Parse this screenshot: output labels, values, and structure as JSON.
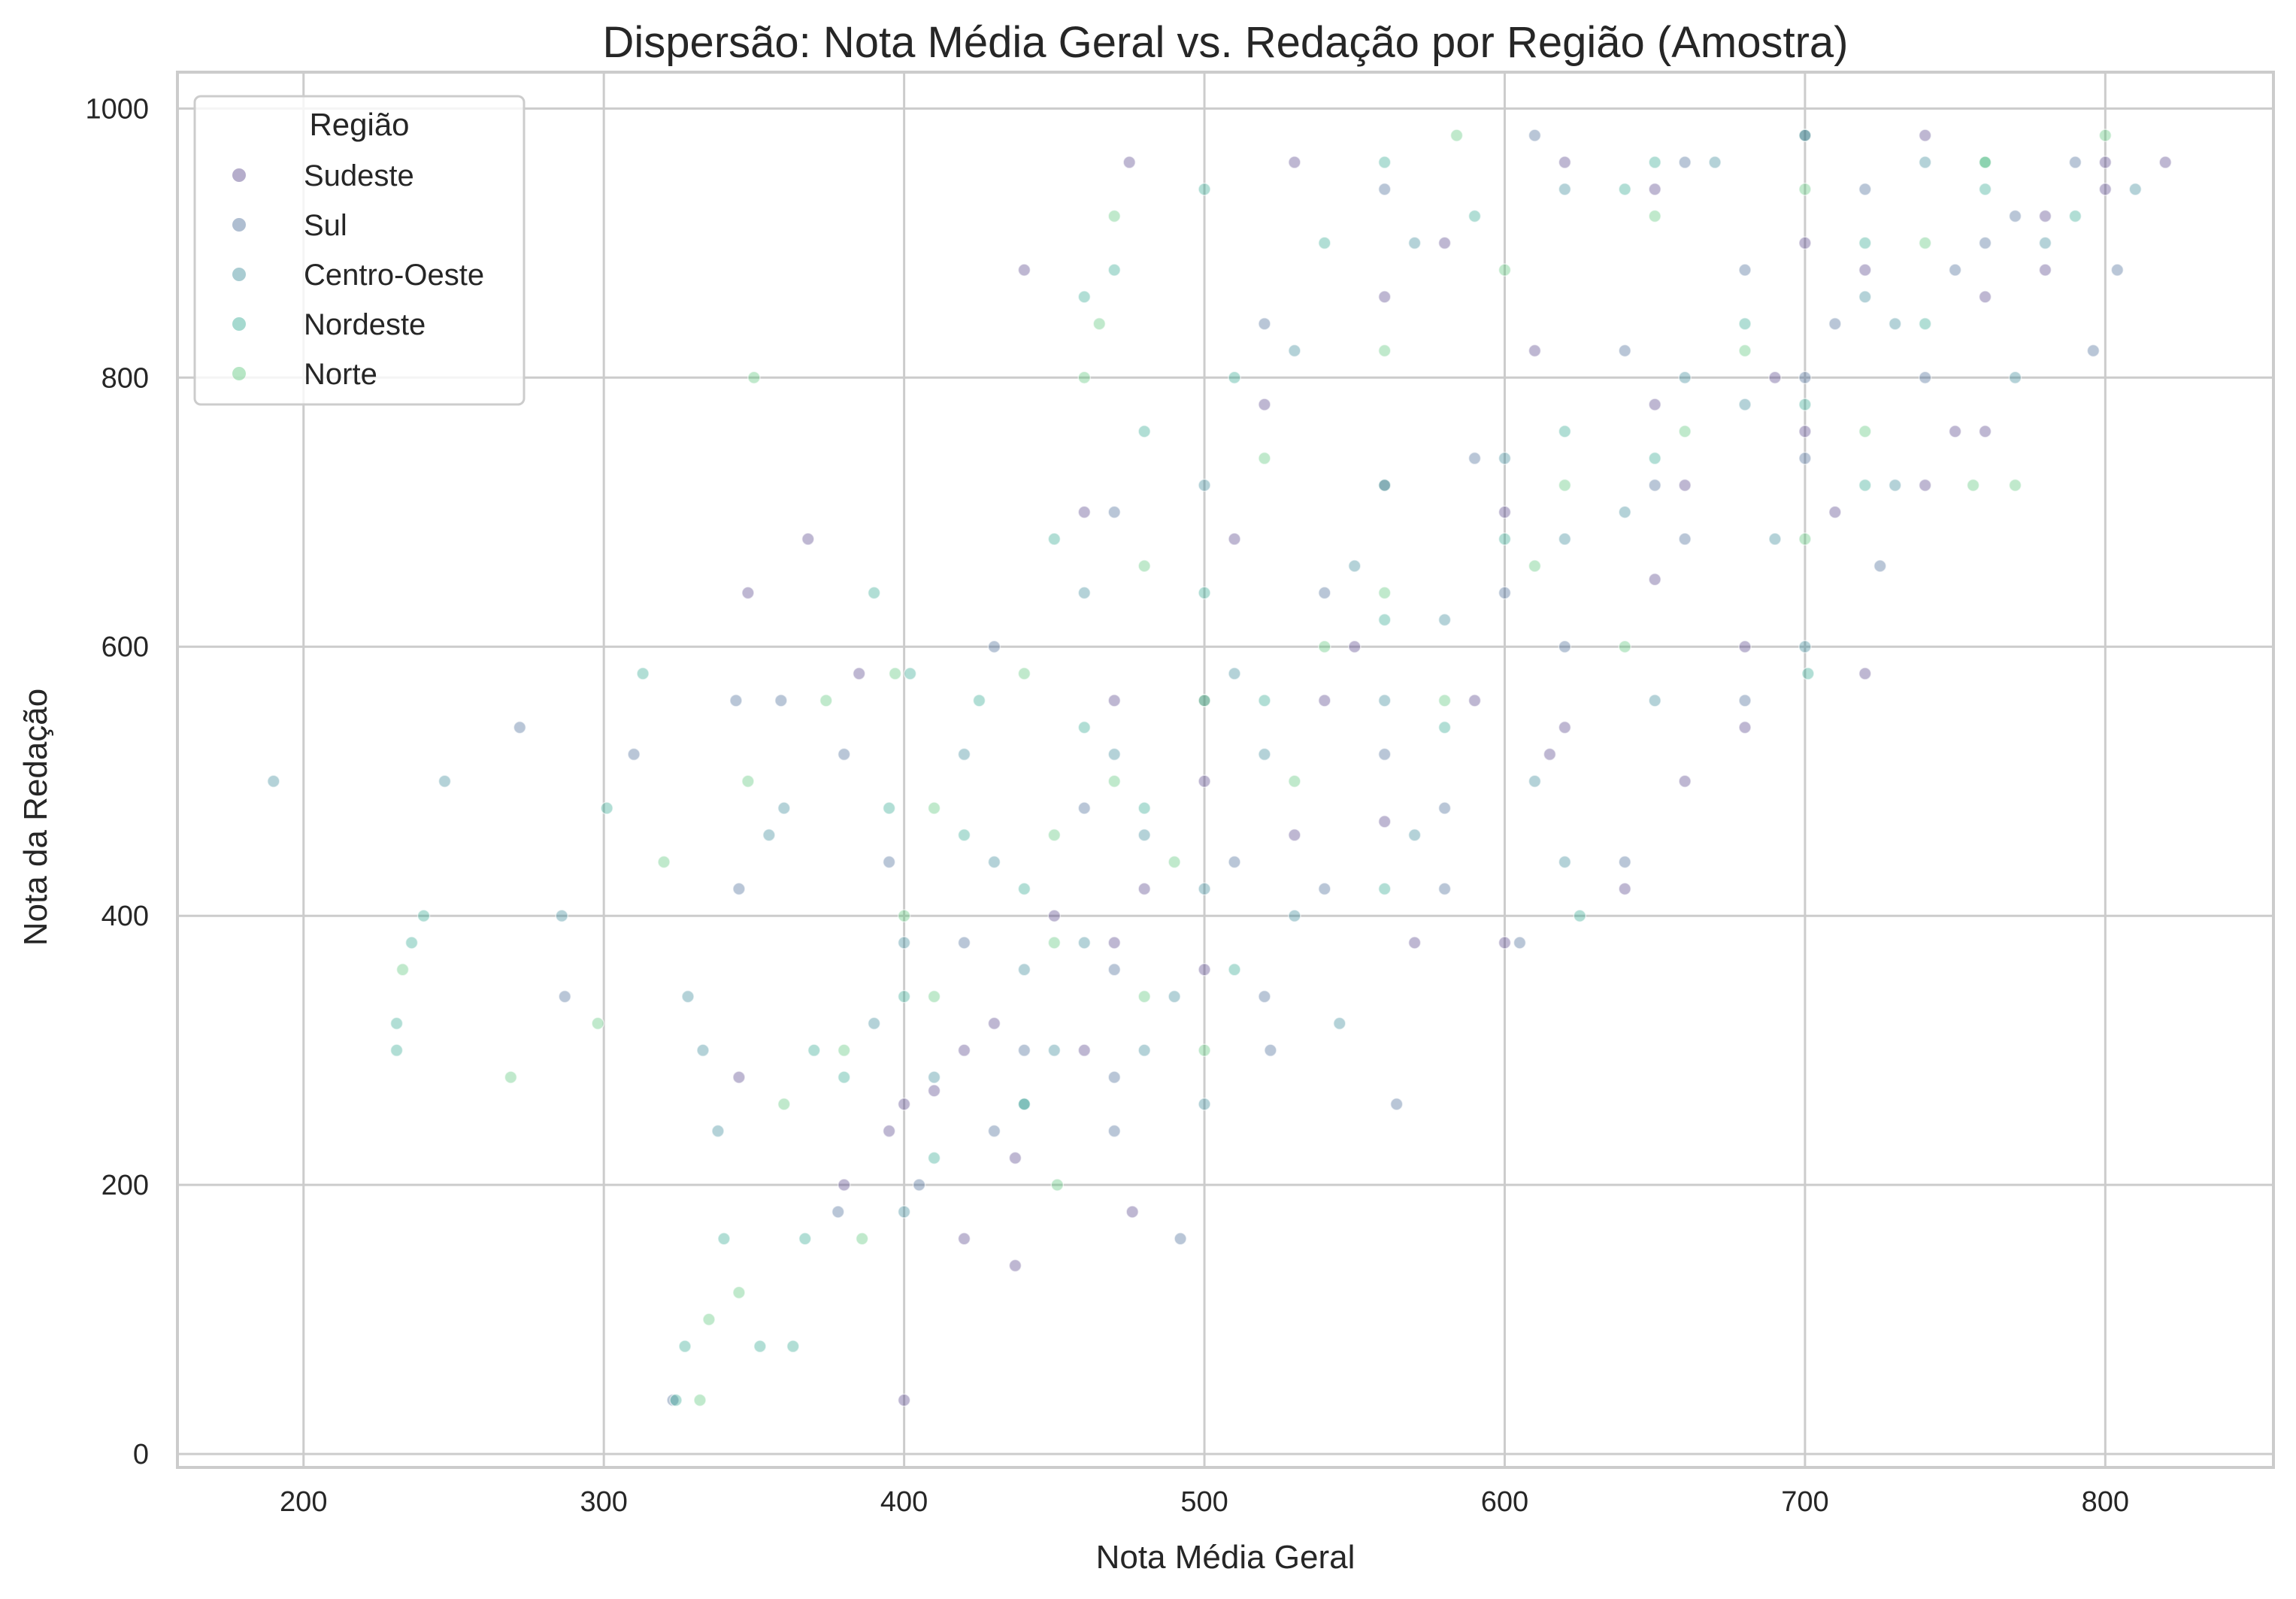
{
  "chart_data": {
    "type": "scatter",
    "title": "Dispersão: Nota Média Geral vs. Redação por Região (Amostra)",
    "xlabel": "Nota Média Geral",
    "ylabel": "Nota da Redação",
    "xlim": [
      158,
      856
    ],
    "ylim": [
      -10,
      1027
    ],
    "x_ticks": [
      200,
      300,
      400,
      500,
      600,
      700,
      800
    ],
    "y_ticks": [
      0,
      200,
      400,
      600,
      800,
      1000
    ],
    "grid": true,
    "legend": {
      "title": "Região",
      "placement": "top-left"
    },
    "marker_opacity": 0.35,
    "series": [
      {
        "name": "Sudeste",
        "color": "#46327e",
        "points": [
          [
            348,
            640
          ],
          [
            368,
            680
          ],
          [
            385,
            580
          ],
          [
            400,
            40
          ],
          [
            437,
            140
          ],
          [
            476,
            180
          ],
          [
            420,
            160
          ],
          [
            437,
            220
          ],
          [
            510,
            680
          ],
          [
            560,
            720
          ],
          [
            620,
            960
          ],
          [
            700,
            980
          ],
          [
            740,
            980
          ],
          [
            800,
            960
          ],
          [
            820,
            960
          ],
          [
            760,
            760
          ],
          [
            740,
            720
          ],
          [
            750,
            760
          ],
          [
            720,
            580
          ],
          [
            680,
            540
          ],
          [
            615,
            520
          ],
          [
            660,
            500
          ],
          [
            640,
            420
          ],
          [
            600,
            380
          ],
          [
            570,
            380
          ],
          [
            470,
            380
          ],
          [
            470,
            560
          ],
          [
            440,
            880
          ],
          [
            475,
            960
          ],
          [
            530,
            960
          ],
          [
            580,
            900
          ],
          [
            650,
            940
          ],
          [
            700,
            900
          ],
          [
            780,
            880
          ],
          [
            600,
            700
          ],
          [
            550,
            600
          ],
          [
            500,
            500
          ],
          [
            450,
            400
          ],
          [
            420,
            300
          ],
          [
            395,
            240
          ],
          [
            380,
            200
          ],
          [
            460,
            700
          ],
          [
            520,
            780
          ],
          [
            560,
            860
          ],
          [
            610,
            820
          ],
          [
            690,
            800
          ],
          [
            710,
            700
          ],
          [
            650,
            650
          ],
          [
            590,
            560
          ],
          [
            530,
            460
          ],
          [
            480,
            420
          ],
          [
            430,
            320
          ],
          [
            400,
            260
          ],
          [
            345,
            280
          ],
          [
            650,
            780
          ],
          [
            720,
            880
          ],
          [
            780,
            920
          ],
          [
            800,
            940
          ],
          [
            540,
            560
          ],
          [
            660,
            720
          ],
          [
            700,
            760
          ],
          [
            760,
            860
          ],
          [
            680,
            600
          ],
          [
            620,
            540
          ],
          [
            560,
            470
          ],
          [
            500,
            360
          ],
          [
            460,
            300
          ],
          [
            410,
            270
          ]
        ]
      },
      {
        "name": "Sul",
        "color": "#365c8d",
        "points": [
          [
            272,
            540
          ],
          [
            287,
            340
          ],
          [
            310,
            520
          ],
          [
            344,
            560
          ],
          [
            345,
            420
          ],
          [
            323,
            40
          ],
          [
            359,
            560
          ],
          [
            378,
            180
          ],
          [
            380,
            520
          ],
          [
            470,
            240
          ],
          [
            492,
            160
          ],
          [
            522,
            300
          ],
          [
            564,
            260
          ],
          [
            605,
            380
          ],
          [
            660,
            680
          ],
          [
            700,
            740
          ],
          [
            740,
            800
          ],
          [
            770,
            920
          ],
          [
            804,
            880
          ],
          [
            796,
            820
          ],
          [
            725,
            660
          ],
          [
            680,
            560
          ],
          [
            640,
            440
          ],
          [
            580,
            420
          ],
          [
            520,
            340
          ],
          [
            470,
            280
          ],
          [
            430,
            240
          ],
          [
            405,
            200
          ],
          [
            395,
            440
          ],
          [
            430,
            600
          ],
          [
            470,
            700
          ],
          [
            520,
            840
          ],
          [
            560,
            940
          ],
          [
            610,
            980
          ],
          [
            660,
            960
          ],
          [
            720,
            940
          ],
          [
            790,
            960
          ],
          [
            680,
            880
          ],
          [
            640,
            820
          ],
          [
            590,
            740
          ],
          [
            540,
            640
          ],
          [
            500,
            560
          ],
          [
            460,
            480
          ],
          [
            420,
            380
          ],
          [
            600,
            640
          ],
          [
            650,
            720
          ],
          [
            700,
            800
          ],
          [
            750,
            880
          ],
          [
            620,
            600
          ],
          [
            560,
            520
          ],
          [
            510,
            440
          ],
          [
            470,
            360
          ],
          [
            440,
            300
          ],
          [
            710,
            840
          ],
          [
            760,
            900
          ],
          [
            580,
            480
          ],
          [
            540,
            420
          ]
        ]
      },
      {
        "name": "Centro-Oeste",
        "color": "#277f8e",
        "points": [
          [
            190,
            500
          ],
          [
            247,
            500
          ],
          [
            286,
            400
          ],
          [
            328,
            340
          ],
          [
            333,
            300
          ],
          [
            338,
            240
          ],
          [
            355,
            460
          ],
          [
            360,
            480
          ],
          [
            400,
            180
          ],
          [
            440,
            260
          ],
          [
            480,
            300
          ],
          [
            500,
            260
          ],
          [
            545,
            320
          ],
          [
            620,
            440
          ],
          [
            700,
            600
          ],
          [
            730,
            720
          ],
          [
            770,
            800
          ],
          [
            810,
            940
          ],
          [
            690,
            680
          ],
          [
            650,
            560
          ],
          [
            610,
            500
          ],
          [
            570,
            460
          ],
          [
            530,
            400
          ],
          [
            490,
            340
          ],
          [
            450,
            300
          ],
          [
            410,
            280
          ],
          [
            390,
            320
          ],
          [
            420,
            520
          ],
          [
            460,
            640
          ],
          [
            500,
            720
          ],
          [
            530,
            820
          ],
          [
            570,
            900
          ],
          [
            620,
            940
          ],
          [
            670,
            960
          ],
          [
            740,
            960
          ],
          [
            780,
            900
          ],
          [
            720,
            860
          ],
          [
            660,
            800
          ],
          [
            600,
            740
          ],
          [
            550,
            660
          ],
          [
            510,
            580
          ],
          [
            470,
            520
          ],
          [
            430,
            440
          ],
          [
            400,
            380
          ],
          [
            640,
            700
          ],
          [
            580,
            620
          ],
          [
            520,
            520
          ],
          [
            480,
            460
          ],
          [
            440,
            360
          ],
          [
            680,
            780
          ],
          [
            730,
            840
          ],
          [
            620,
            680
          ],
          [
            560,
            560
          ],
          [
            500,
            420
          ],
          [
            460,
            380
          ]
        ]
      },
      {
        "name": "Nordeste",
        "color": "#1fa187",
        "points": [
          [
            231,
            320
          ],
          [
            231,
            300
          ],
          [
            236,
            380
          ],
          [
            240,
            400
          ],
          [
            301,
            480
          ],
          [
            313,
            580
          ],
          [
            327,
            80
          ],
          [
            324,
            40
          ],
          [
            340,
            160
          ],
          [
            352,
            80
          ],
          [
            363,
            80
          ],
          [
            367,
            160
          ],
          [
            390,
            640
          ],
          [
            402,
            580
          ],
          [
            460,
            860
          ],
          [
            470,
            880
          ],
          [
            500,
            940
          ],
          [
            560,
            960
          ],
          [
            640,
            940
          ],
          [
            720,
            720
          ],
          [
            701,
            580
          ],
          [
            625,
            400
          ],
          [
            560,
            420
          ],
          [
            510,
            360
          ],
          [
            440,
            260
          ],
          [
            410,
            220
          ],
          [
            380,
            280
          ],
          [
            395,
            480
          ],
          [
            425,
            560
          ],
          [
            450,
            680
          ],
          [
            480,
            760
          ],
          [
            510,
            800
          ],
          [
            540,
            900
          ],
          [
            590,
            920
          ],
          [
            650,
            960
          ],
          [
            700,
            980
          ],
          [
            760,
            940
          ],
          [
            790,
            920
          ],
          [
            740,
            840
          ],
          [
            700,
            780
          ],
          [
            650,
            740
          ],
          [
            600,
            680
          ],
          [
            560,
            620
          ],
          [
            520,
            560
          ],
          [
            480,
            480
          ],
          [
            440,
            420
          ],
          [
            400,
            340
          ],
          [
            370,
            300
          ],
          [
            620,
            760
          ],
          [
            680,
            840
          ],
          [
            560,
            720
          ],
          [
            500,
            640
          ],
          [
            460,
            540
          ],
          [
            420,
            460
          ],
          [
            720,
            900
          ],
          [
            760,
            960
          ],
          [
            580,
            540
          ]
        ]
      },
      {
        "name": "Norte",
        "color": "#4ac16d",
        "points": [
          [
            233,
            360
          ],
          [
            269,
            280
          ],
          [
            298,
            320
          ],
          [
            320,
            440
          ],
          [
            332,
            40
          ],
          [
            335,
            100
          ],
          [
            345,
            120
          ],
          [
            348,
            500
          ],
          [
            350,
            800
          ],
          [
            374,
            560
          ],
          [
            386,
            160
          ],
          [
            397,
            580
          ],
          [
            451,
            200
          ],
          [
            480,
            340
          ],
          [
            500,
            300
          ],
          [
            470,
            920
          ],
          [
            465,
            840
          ],
          [
            460,
            800
          ],
          [
            584,
            980
          ],
          [
            720,
            760
          ],
          [
            756,
            720
          ],
          [
            770,
            720
          ],
          [
            700,
            680
          ],
          [
            640,
            600
          ],
          [
            580,
            560
          ],
          [
            530,
            500
          ],
          [
            490,
            440
          ],
          [
            450,
            380
          ],
          [
            410,
            340
          ],
          [
            380,
            300
          ],
          [
            360,
            260
          ],
          [
            410,
            480
          ],
          [
            440,
            580
          ],
          [
            480,
            660
          ],
          [
            520,
            740
          ],
          [
            560,
            820
          ],
          [
            600,
            880
          ],
          [
            650,
            920
          ],
          [
            700,
            940
          ],
          [
            760,
            960
          ],
          [
            800,
            980
          ],
          [
            740,
            900
          ],
          [
            680,
            820
          ],
          [
            620,
            720
          ],
          [
            560,
            640
          ],
          [
            500,
            560
          ],
          [
            450,
            460
          ],
          [
            400,
            400
          ],
          [
            610,
            660
          ],
          [
            660,
            760
          ],
          [
            540,
            600
          ],
          [
            470,
            500
          ]
        ]
      }
    ]
  }
}
